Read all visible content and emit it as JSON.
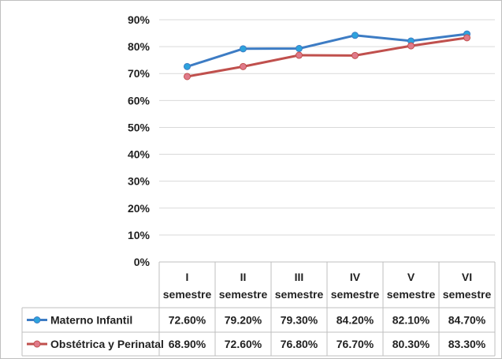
{
  "chart_data": {
    "type": "line",
    "categories": [
      [
        "I",
        "semestre"
      ],
      [
        "II",
        "semestre"
      ],
      [
        "III",
        "semestre"
      ],
      [
        "IV",
        "semestre"
      ],
      [
        "V",
        "semestre"
      ],
      [
        "VI",
        "semestre"
      ]
    ],
    "ylim": [
      0,
      90
    ],
    "yticks": [
      "0%",
      "10%",
      "20%",
      "30%",
      "40%",
      "50%",
      "60%",
      "70%",
      "80%",
      "90%"
    ],
    "grid": true,
    "legend_placement": "bottom data table",
    "series": [
      {
        "name": "Materno Infantil",
        "color": "#3d7cc4",
        "marker_color": "#2da3dd",
        "values": [
          72.6,
          79.2,
          79.3,
          84.2,
          82.1,
          84.7
        ],
        "labels": [
          "72.60%",
          "79.20%",
          "79.30%",
          "84.20%",
          "82.10%",
          "84.70%"
        ]
      },
      {
        "name": "Obstétrica y Perinatal",
        "color": "#c0504d",
        "marker_color": "#e07a8a",
        "values": [
          68.9,
          72.6,
          76.8,
          76.7,
          80.3,
          83.3
        ],
        "labels": [
          "68.90%",
          "72.60%",
          "76.80%",
          "76.70%",
          "80.30%",
          "83.30%"
        ]
      }
    ]
  }
}
